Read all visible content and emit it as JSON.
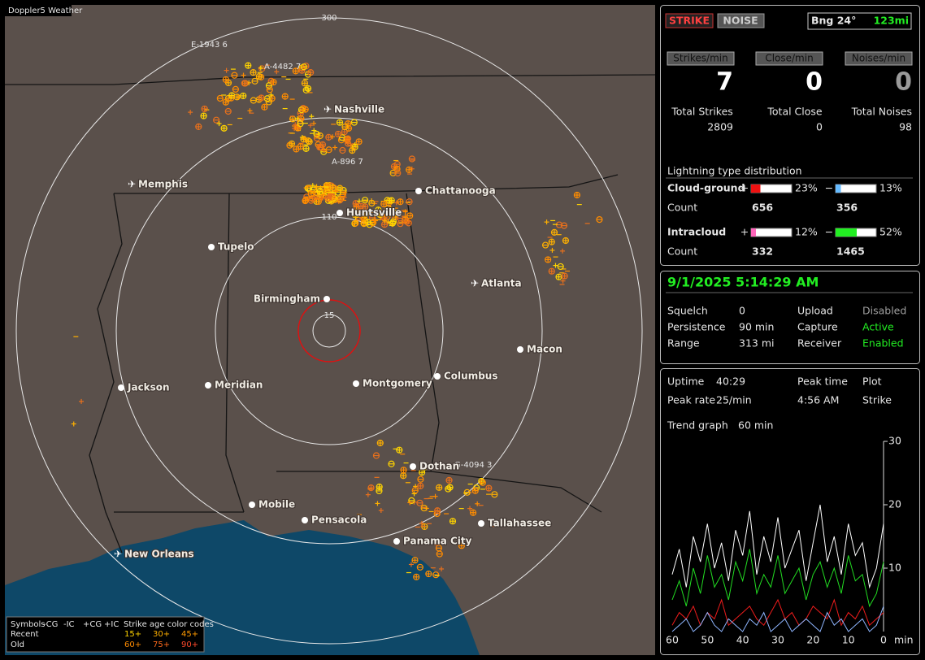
{
  "map": {
    "title": "Doppler5 Weather",
    "ring_labels": [
      "15",
      "110",
      "300"
    ],
    "cities": [
      "Nashville",
      "Memphis",
      "Chattanooga",
      "Huntsville",
      "Tupelo",
      "Atlanta",
      "Birmingham",
      "Macon",
      "Jackson",
      "Meridian",
      "Montgomery",
      "Columbus",
      "Dothan",
      "Mobile",
      "Pensacola",
      "Panama City",
      "Tallahassee",
      "New Orleans"
    ],
    "strike_ids": [
      "E-1943 6",
      "A-4482 7",
      "A-896 7",
      "G-4094 3"
    ],
    "legend": {
      "heading": [
        "Symbols",
        "-CG",
        "-IC",
        "+CG",
        "+IC",
        "Strike age color codes"
      ],
      "rows": [
        {
          "label": "Recent",
          "ages": [
            "15+",
            "30+",
            "45+"
          ]
        },
        {
          "label": "Old",
          "ages": [
            "60+",
            "75+",
            "90+"
          ]
        }
      ]
    }
  },
  "status": {
    "buttons": [
      "STRIKE",
      "NOISE"
    ],
    "bearing": "Bng 24°",
    "distance": "123mi",
    "rate_labels": [
      "Strikes/min",
      "Close/min",
      "Noises/min"
    ],
    "rates": [
      7,
      0,
      0
    ],
    "total_labels": [
      "Total Strikes",
      "Total Close",
      "Total Noises"
    ],
    "totals": [
      2809,
      0,
      98
    ],
    "distribution_title": "Lightning type distribution",
    "signs": [
      "+",
      "−"
    ],
    "count_label": "Count",
    "types": [
      {
        "label": "Cloud-ground",
        "plus": {
          "value": 23,
          "label": "23%"
        },
        "minus": {
          "value": 13,
          "label": "13%"
        },
        "counts": [
          656,
          356
        ]
      },
      {
        "label": "Intracloud",
        "plus": {
          "value": 12,
          "label": "12%"
        },
        "minus": {
          "value": 52,
          "label": "52%"
        },
        "counts": [
          332,
          1465
        ]
      }
    ]
  },
  "settings": {
    "datetime": "9/1/2025 5:14:29 AM",
    "rows": [
      [
        "Squelch",
        "0",
        "Upload",
        "Disabled"
      ],
      [
        "Persistence",
        "90 min",
        "Capture",
        "Active"
      ],
      [
        "Range",
        "313 mi",
        "Receiver",
        "Enabled"
      ]
    ]
  },
  "uptime": {
    "rows": [
      [
        "Uptime",
        "40:29",
        "Peak time",
        "Plot"
      ],
      [
        "Peak rate",
        "25/min",
        "4:56 AM",
        "Strike"
      ]
    ],
    "trend": [
      "Trend graph",
      "60 min"
    ]
  },
  "chart_data": {
    "type": "line",
    "x_label": "min",
    "x": [
      60,
      58,
      56,
      54,
      52,
      50,
      48,
      46,
      44,
      42,
      40,
      38,
      36,
      34,
      32,
      30,
      28,
      26,
      24,
      22,
      20,
      18,
      16,
      14,
      12,
      10,
      8,
      6,
      4,
      2,
      0
    ],
    "xlim": [
      60,
      0
    ],
    "xticks": [
      60,
      50,
      40,
      30,
      20,
      10,
      0
    ],
    "ylim": [
      0,
      30
    ],
    "yticks": [
      10,
      20,
      30
    ],
    "series": [
      {
        "color": "#ffffff",
        "values": [
          9,
          13,
          7,
          15,
          11,
          17,
          10,
          14,
          8,
          16,
          12,
          19,
          9,
          15,
          11,
          18,
          10,
          13,
          16,
          8,
          14,
          20,
          11,
          15,
          9,
          17,
          12,
          14,
          7,
          10,
          17
        ]
      },
      {
        "color": "#22dd22",
        "values": [
          5,
          8,
          4,
          10,
          6,
          12,
          7,
          9,
          5,
          11,
          8,
          13,
          6,
          9,
          7,
          12,
          6,
          8,
          10,
          5,
          9,
          11,
          7,
          10,
          6,
          12,
          8,
          9,
          4,
          6,
          11
        ]
      },
      {
        "color": "#ee1c1c",
        "values": [
          1,
          3,
          2,
          4,
          1,
          3,
          2,
          5,
          1,
          2,
          3,
          4,
          2,
          1,
          3,
          5,
          2,
          3,
          1,
          2,
          4,
          3,
          2,
          5,
          1,
          3,
          2,
          4,
          1,
          2,
          3
        ]
      },
      {
        "color": "#8fb6ff",
        "values": [
          0,
          1,
          2,
          0,
          1,
          3,
          1,
          0,
          2,
          1,
          0,
          2,
          1,
          3,
          0,
          1,
          2,
          0,
          1,
          2,
          1,
          0,
          3,
          1,
          2,
          0,
          1,
          2,
          0,
          1,
          4
        ]
      }
    ]
  }
}
